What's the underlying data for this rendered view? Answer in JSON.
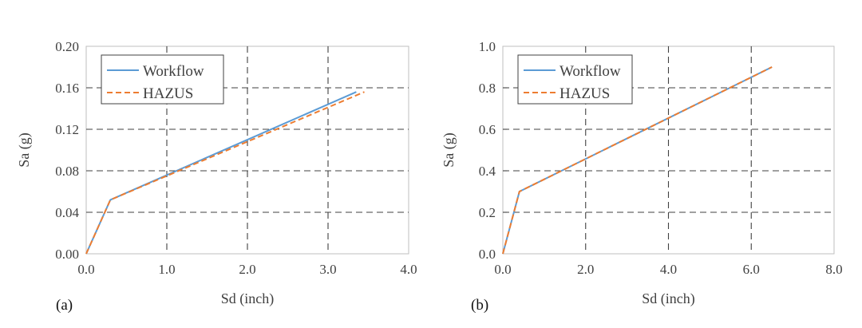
{
  "chart_data": [
    {
      "type": "line",
      "panel_label": "(a)",
      "xlabel": "Sd (inch)",
      "ylabel": "Sa (g)",
      "xlim": [
        0,
        4
      ],
      "ylim": [
        0,
        0.2
      ],
      "x_ticks": [
        "0.0",
        "1.0",
        "2.0",
        "3.0",
        "4.0"
      ],
      "y_ticks": [
        "0.00",
        "0.04",
        "0.08",
        "0.12",
        "0.16",
        "0.20"
      ],
      "x_tick_values": [
        0,
        1,
        2,
        3,
        4
      ],
      "y_tick_values": [
        0,
        0.04,
        0.08,
        0.12,
        0.16,
        0.2
      ],
      "grid": "major, dashed",
      "legend_position": "top-left",
      "series": [
        {
          "name": "Workflow",
          "style": "solid",
          "color": "#5B9BD5",
          "x": [
            0,
            0.3,
            3.35
          ],
          "y": [
            0,
            0.052,
            0.156
          ]
        },
        {
          "name": "HAZUS",
          "style": "dashed",
          "color": "#ED7D31",
          "x": [
            0,
            0.3,
            3.45
          ],
          "y": [
            0,
            0.052,
            0.156
          ]
        }
      ]
    },
    {
      "type": "line",
      "panel_label": "(b)",
      "xlabel": "Sd (inch)",
      "ylabel": "Sa (g)",
      "xlim": [
        0,
        8
      ],
      "ylim": [
        0,
        1
      ],
      "x_ticks": [
        "0.0",
        "2.0",
        "4.0",
        "6.0",
        "8.0"
      ],
      "y_ticks": [
        "0.0",
        "0.2",
        "0.4",
        "0.6",
        "0.8",
        "1.0"
      ],
      "x_tick_values": [
        0,
        2,
        4,
        6,
        8
      ],
      "y_tick_values": [
        0,
        0.2,
        0.4,
        0.6,
        0.8,
        1.0
      ],
      "grid": "major, dashed",
      "legend_position": "top-left",
      "series": [
        {
          "name": "Workflow",
          "style": "solid",
          "color": "#5B9BD5",
          "x": [
            0,
            0.4,
            6.5
          ],
          "y": [
            0,
            0.3,
            0.9
          ]
        },
        {
          "name": "HAZUS",
          "style": "dashed",
          "color": "#ED7D31",
          "x": [
            0,
            0.4,
            6.5
          ],
          "y": [
            0,
            0.3,
            0.9
          ]
        }
      ]
    }
  ]
}
